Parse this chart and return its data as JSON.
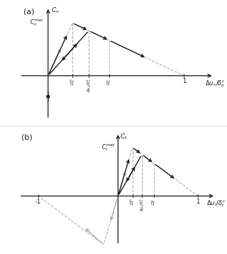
{
  "fig_width": 3.2,
  "fig_height": 3.58,
  "dpi": 100,
  "panel_a": {
    "label": "(a)",
    "ylabel": "$C_n$",
    "ylabel_max": "$C_n^{max}$",
    "xlabel": "$\\Delta u_n/\\delta_n^c$",
    "D0": 0.18,
    "Dmid": 0.3,
    "Dc": 0.45,
    "Cmax": 0.82,
    "xlim": [
      -0.22,
      1.25
    ],
    "ylim": [
      -0.7,
      1.1
    ],
    "has_negative_y": true,
    "has_negative_x": false,
    "tick_d0_label": "$D_n^0$",
    "tick_dmid_label": "$\\Delta u_n/\\delta_n^0$",
    "tick_dc_label": "$D_n^c$"
  },
  "panel_b": {
    "label": "(b)",
    "ylabel": "$C_t$",
    "ylabel_max": "$C_t^{max}$",
    "xlabel": "$\\Delta u_t/\\delta_t^c$",
    "D0": 0.18,
    "Dmid": 0.3,
    "Dc": 0.45,
    "Cmax": 0.82,
    "xlim": [
      -1.25,
      1.25
    ],
    "ylim": [
      -0.85,
      1.1
    ],
    "has_negative_y": false,
    "has_negative_x": true,
    "tick_d0_label": "$D_t^0$",
    "tick_dmid_label": "$\\Delta u_t/\\delta_t^0$",
    "tick_dc_label": "$D_t^c$"
  },
  "gray_color": "#b0b0b0",
  "black_color": "#1a1a1a",
  "arrow_mutation_scale": 7,
  "lw_axis": 0.9,
  "lw_line": 1.0,
  "lw_dash": 0.8
}
